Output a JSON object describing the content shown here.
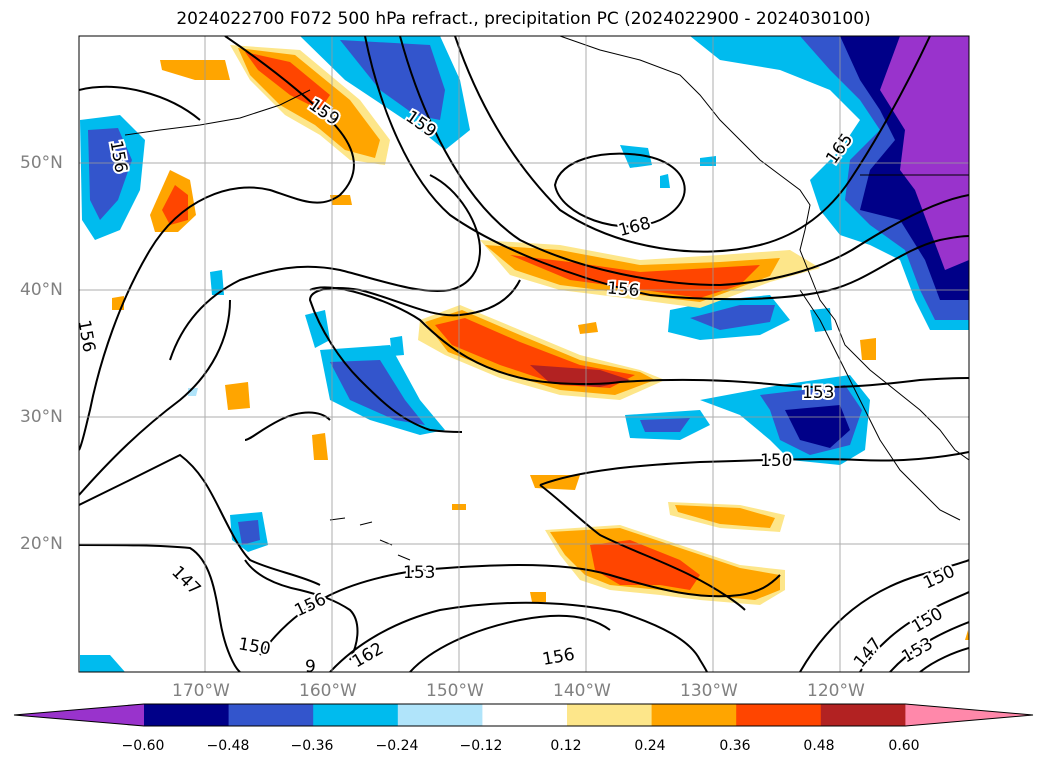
{
  "title": "2024022700 F072 500 hPa refract., precipitation PC (2024022900 - 2024030100)",
  "lat_labels": [
    "50°N",
    "40°N",
    "30°N",
    "20°N"
  ],
  "lon_labels": [
    "170°W",
    "160°W",
    "150°W",
    "140°W",
    "130°W",
    "120°W"
  ],
  "contour_labels": [
    "159",
    "159",
    "156",
    "168",
    "165",
    "156",
    "156",
    "153",
    "150",
    "153",
    "147",
    "156",
    "150",
    "162",
    "156",
    "150",
    "150",
    "147",
    "153",
    "9"
  ],
  "colorbar": {
    "ticks": [
      "−0.60",
      "−0.48",
      "−0.36",
      "−0.24",
      "−0.12",
      "0.12",
      "0.24",
      "0.36",
      "0.48",
      "0.60"
    ],
    "colors": [
      "#9933cc",
      "#000088",
      "#3355cc",
      "#00bbee",
      "#b0e4fa",
      "#ffffff",
      "#fde68a",
      "#ffa500",
      "#ff4500",
      "#b22222",
      "#ff88aa"
    ]
  }
}
